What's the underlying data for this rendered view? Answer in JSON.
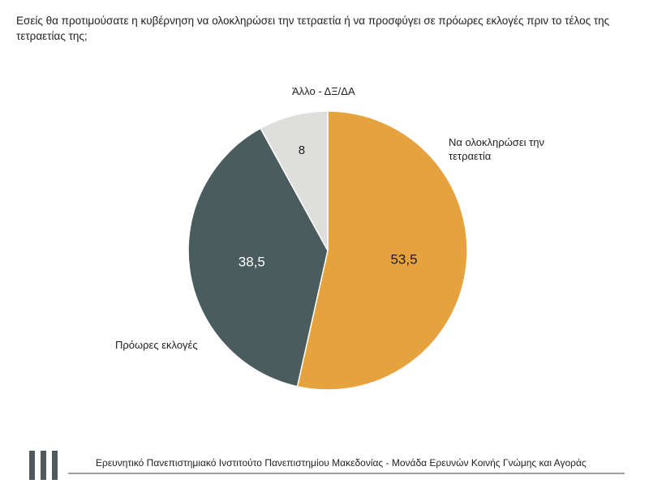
{
  "question": "Εσείς θα προτιμούσατε η κυβέρνηση να ολοκληρώσει την τετραετία ή να προσφύγει σε πρόωρες εκλογές πριν το τέλος της τετραετίας της;",
  "chart_data": {
    "type": "pie",
    "slices": [
      {
        "label": "Να ολοκληρώσει την τετραετία",
        "label_lines": [
          "Να ολοκληρώσει την",
          "τετραετία"
        ],
        "value": 53.5,
        "value_text": "53,5",
        "color": "#e6a23c",
        "value_color": "#1f1f1f"
      },
      {
        "label": "Πρόωρες εκλογές",
        "label_lines": [
          "Πρόωρες εκλογές"
        ],
        "value": 38.5,
        "value_text": "38,5",
        "color": "#4a5c5e",
        "value_color": "#ffffff"
      },
      {
        "label": "Άλλο - ΔΞ/ΔΑ",
        "label_lines": [
          "Άλλο - ΔΞ/ΔΑ"
        ],
        "value": 8,
        "value_text": "8",
        "color": "#dededd",
        "value_color": "#1f1f1f"
      }
    ]
  },
  "footer": {
    "text": "Ερευνητικό Πανεπιστημιακό Ινστιτούτο Πανεπιστημίου Μακεδονίας - Μονάδα Ερευνών Κοινής Γνώμης και Αγοράς",
    "logo_icon": "three-bars-logo-icon",
    "logo_color": "#50595c"
  }
}
